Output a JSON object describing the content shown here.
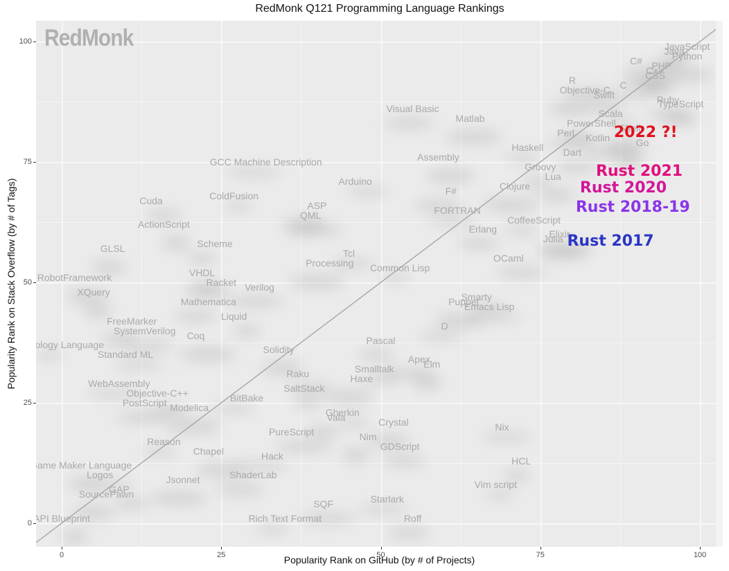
{
  "chart_data": {
    "type": "scatter",
    "title": "RedMonk Q121 Programming Language Rankings",
    "xlabel": "Popularity Rank on GitHub (by # of Projects)",
    "ylabel": "Popularity Rank on Stack Overflow (by # of Tags)",
    "xlim": [
      -4,
      104
    ],
    "ylim": [
      -4,
      104
    ],
    "xticks": [
      0,
      25,
      50,
      75,
      100
    ],
    "yticks": [
      0,
      25,
      50,
      75,
      100
    ],
    "grid": true,
    "watermark": "RedMonk",
    "reference_line": {
      "from": [
        -4,
        -4
      ],
      "to": [
        104,
        104
      ],
      "color": "#a6a6a6"
    },
    "points": [
      {
        "label": "JavaScript",
        "x": 98,
        "y": 99
      },
      {
        "label": "Java",
        "x": 96,
        "y": 98
      },
      {
        "label": "Python",
        "x": 98,
        "y": 97
      },
      {
        "label": "C#",
        "x": 90,
        "y": 96
      },
      {
        "label": "PHP",
        "x": 94,
        "y": 95
      },
      {
        "label": "C++",
        "x": 93,
        "y": 94
      },
      {
        "label": "CSS",
        "x": 93,
        "y": 93
      },
      {
        "label": "R",
        "x": 80,
        "y": 92
      },
      {
        "label": "Objective-C",
        "x": 82,
        "y": 90
      },
      {
        "label": "C",
        "x": 88,
        "y": 91
      },
      {
        "label": "Swift",
        "x": 85,
        "y": 89
      },
      {
        "label": "Ruby",
        "x": 95,
        "y": 88
      },
      {
        "label": "TypeScript",
        "x": 97,
        "y": 87
      },
      {
        "label": "Visual Basic",
        "x": 55,
        "y": 86
      },
      {
        "label": "Matlab",
        "x": 64,
        "y": 84
      },
      {
        "label": "Scala",
        "x": 86,
        "y": 85
      },
      {
        "label": "PowerShell",
        "x": 83,
        "y": 83
      },
      {
        "label": "Shell",
        "x": 89,
        "y": 82
      },
      {
        "label": "Perl",
        "x": 79,
        "y": 81
      },
      {
        "label": "Kotlin",
        "x": 84,
        "y": 80
      },
      {
        "label": "Go",
        "x": 91,
        "y": 79
      },
      {
        "label": "Haskell",
        "x": 73,
        "y": 78
      },
      {
        "label": "Dart",
        "x": 80,
        "y": 77
      },
      {
        "label": "Assembly",
        "x": 59,
        "y": 76
      },
      {
        "label": "GCC Machine Description",
        "x": 32,
        "y": 75
      },
      {
        "label": "Groovy",
        "x": 75,
        "y": 74
      },
      {
        "label": "Lua",
        "x": 77,
        "y": 72
      },
      {
        "label": "Arduino",
        "x": 46,
        "y": 71
      },
      {
        "label": "F#",
        "x": 61,
        "y": 69
      },
      {
        "label": "Clojure",
        "x": 71,
        "y": 70
      },
      {
        "label": "ColdFusion",
        "x": 27,
        "y": 68
      },
      {
        "label": "Cuda",
        "x": 14,
        "y": 67
      },
      {
        "label": "ASP",
        "x": 40,
        "y": 66
      },
      {
        "label": "FORTRAN",
        "x": 62,
        "y": 65
      },
      {
        "label": "QML",
        "x": 39,
        "y": 64
      },
      {
        "label": "ActionScript",
        "x": 16,
        "y": 62
      },
      {
        "label": "CoffeeScript",
        "x": 74,
        "y": 63
      },
      {
        "label": "Erlang",
        "x": 66,
        "y": 61
      },
      {
        "label": "Elixir",
        "x": 78,
        "y": 60
      },
      {
        "label": "Julia",
        "x": 77,
        "y": 59
      },
      {
        "label": "Scheme",
        "x": 24,
        "y": 58
      },
      {
        "label": "GLSL",
        "x": 8,
        "y": 57
      },
      {
        "label": "Tcl",
        "x": 45,
        "y": 56
      },
      {
        "label": "OCaml",
        "x": 70,
        "y": 55
      },
      {
        "label": "Processing",
        "x": 42,
        "y": 54
      },
      {
        "label": "Common Lisp",
        "x": 53,
        "y": 53
      },
      {
        "label": "VHDL",
        "x": 22,
        "y": 52
      },
      {
        "label": "RobotFramework",
        "x": 2,
        "y": 51
      },
      {
        "label": "Racket",
        "x": 25,
        "y": 50
      },
      {
        "label": "Verilog",
        "x": 31,
        "y": 49
      },
      {
        "label": "XQuery",
        "x": 5,
        "y": 48
      },
      {
        "label": "Smarty",
        "x": 65,
        "y": 47
      },
      {
        "label": "Mathematica",
        "x": 23,
        "y": 46
      },
      {
        "label": "Puppet",
        "x": 63,
        "y": 46
      },
      {
        "label": "Emacs Lisp",
        "x": 67,
        "y": 45
      },
      {
        "label": "Liquid",
        "x": 27,
        "y": 43
      },
      {
        "label": "FreeMarker",
        "x": 11,
        "y": 42
      },
      {
        "label": "D",
        "x": 60,
        "y": 41
      },
      {
        "label": "SystemVerilog",
        "x": 13,
        "y": 40
      },
      {
        "label": "Coq",
        "x": 21,
        "y": 39
      },
      {
        "label": "Ontology Language",
        "x": 0,
        "y": 37
      },
      {
        "label": "Pascal",
        "x": 50,
        "y": 38
      },
      {
        "label": "Solidity",
        "x": 34,
        "y": 36
      },
      {
        "label": "Standard ML",
        "x": 10,
        "y": 35
      },
      {
        "label": "Apex",
        "x": 56,
        "y": 34
      },
      {
        "label": "Elm",
        "x": 58,
        "y": 33
      },
      {
        "label": "Smalltalk",
        "x": 49,
        "y": 32
      },
      {
        "label": "Raku",
        "x": 37,
        "y": 31
      },
      {
        "label": "Haxe",
        "x": 47,
        "y": 30
      },
      {
        "label": "WebAssembly",
        "x": 9,
        "y": 29
      },
      {
        "label": "SaltStack",
        "x": 38,
        "y": 28
      },
      {
        "label": "Objective-C++",
        "x": 15,
        "y": 27
      },
      {
        "label": "BitBake",
        "x": 29,
        "y": 26
      },
      {
        "label": "PostScript",
        "x": 13,
        "y": 25
      },
      {
        "label": "Modelica",
        "x": 20,
        "y": 24
      },
      {
        "label": "Gherkin",
        "x": 44,
        "y": 23
      },
      {
        "label": "Vala",
        "x": 43,
        "y": 22
      },
      {
        "label": "Crystal",
        "x": 52,
        "y": 21
      },
      {
        "label": "Nix",
        "x": 69,
        "y": 20
      },
      {
        "label": "PureScript",
        "x": 36,
        "y": 19
      },
      {
        "label": "Nim",
        "x": 48,
        "y": 18
      },
      {
        "label": "Reason",
        "x": 16,
        "y": 17
      },
      {
        "label": "GDScript",
        "x": 53,
        "y": 16
      },
      {
        "label": "Chapel",
        "x": 23,
        "y": 15
      },
      {
        "label": "Hack",
        "x": 33,
        "y": 14
      },
      {
        "label": "HCL",
        "x": 72,
        "y": 13
      },
      {
        "label": "Game Maker Language",
        "x": 3,
        "y": 12
      },
      {
        "label": "Logos",
        "x": 6,
        "y": 10
      },
      {
        "label": "ShaderLab",
        "x": 30,
        "y": 10
      },
      {
        "label": "Jsonnet",
        "x": 19,
        "y": 9
      },
      {
        "label": "Vim script",
        "x": 68,
        "y": 8
      },
      {
        "label": "GAP",
        "x": 9,
        "y": 7
      },
      {
        "label": "SourcePawn",
        "x": 7,
        "y": 6
      },
      {
        "label": "Starlark",
        "x": 51,
        "y": 5
      },
      {
        "label": "SQF",
        "x": 41,
        "y": 4
      },
      {
        "label": "API Blueprint",
        "x": 0,
        "y": 1
      },
      {
        "label": "Rich Text Format",
        "x": 35,
        "y": 1
      },
      {
        "label": "Roff",
        "x": 55,
        "y": 1
      }
    ],
    "annotations": [
      {
        "label": "2022 ?!",
        "x": 91.5,
        "y": 81,
        "color": "#e0121f"
      },
      {
        "label": "Rust 2021",
        "x": 90.5,
        "y": 73,
        "color": "#e0107f"
      },
      {
        "label": "Rust 2020",
        "x": 88,
        "y": 69.5,
        "color": "#d4159a"
      },
      {
        "label": "Rust 2018-19",
        "x": 89.5,
        "y": 65.5,
        "color": "#8a35e8"
      },
      {
        "label": "Rust 2017",
        "x": 86,
        "y": 58.5,
        "color": "#2b35c4"
      }
    ]
  }
}
